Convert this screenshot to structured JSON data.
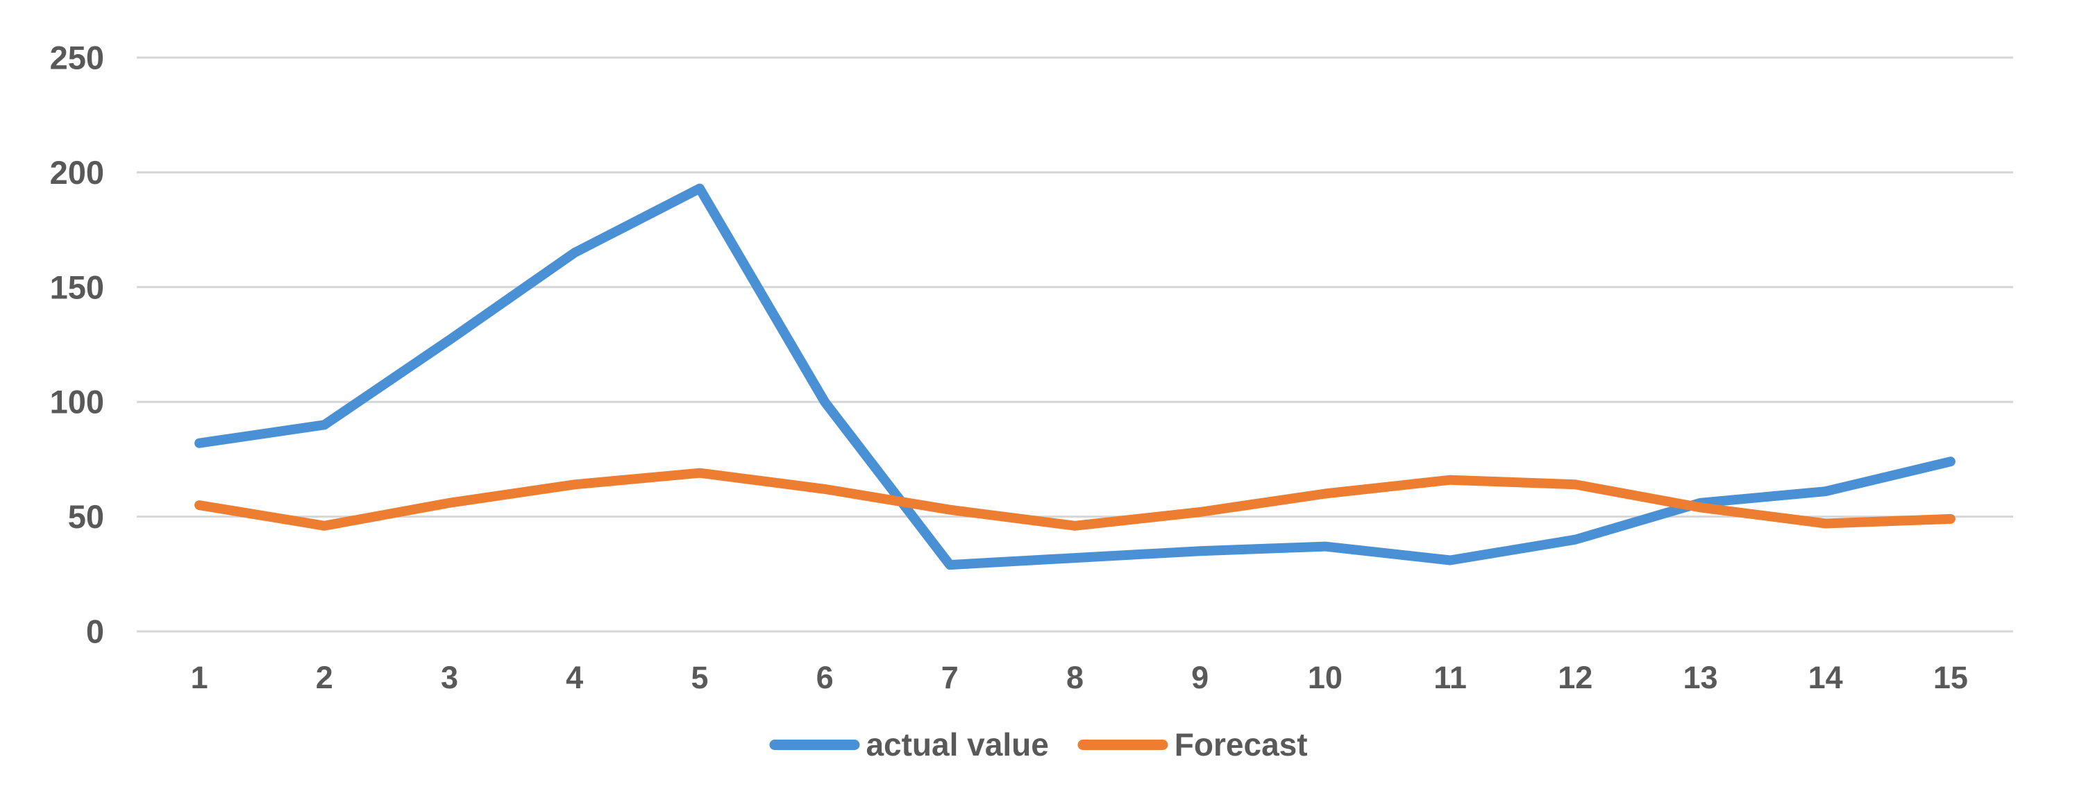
{
  "chart_data": {
    "type": "line",
    "categories": [
      "1",
      "2",
      "3",
      "4",
      "5",
      "6",
      "7",
      "8",
      "9",
      "10",
      "11",
      "12",
      "13",
      "14",
      "15"
    ],
    "series": [
      {
        "name": "actual value",
        "color": "#4a90d5",
        "values": [
          82,
          90,
          127,
          165,
          193,
          100,
          29,
          32,
          35,
          37,
          31,
          40,
          56,
          61,
          74
        ]
      },
      {
        "name": "Forecast",
        "color": "#ed7d31",
        "values": [
          55,
          46,
          56,
          64,
          69,
          62,
          53,
          46,
          52,
          60,
          66,
          64,
          54,
          47,
          49
        ]
      }
    ],
    "ylim": [
      0,
      250
    ],
    "yticks": [
      0,
      50,
      100,
      150,
      200,
      250
    ],
    "grid": true,
    "legend_position": "bottom",
    "styles": {
      "tick_label_color": "#595959",
      "gridline_color": "#d6d6d6",
      "background": "#ffffff"
    }
  }
}
